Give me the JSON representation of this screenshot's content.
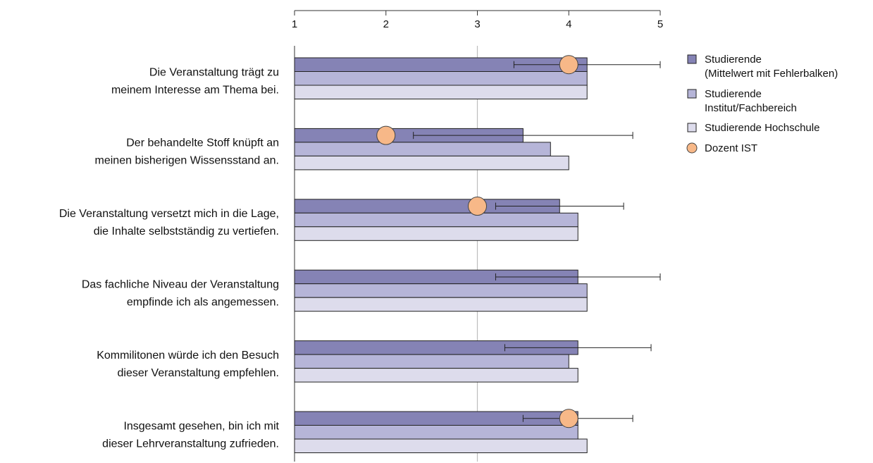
{
  "chart_data": {
    "type": "bar",
    "orientation": "horizontal",
    "xlim": [
      1,
      5
    ],
    "xticks": [
      "1",
      "2",
      "3",
      "4",
      "5"
    ],
    "reference_line": 3,
    "categories": [
      [
        "Die Veranstaltung trägt zu",
        "meinem Interesse am Thema bei."
      ],
      [
        "Der behandelte Stoff knüpft an",
        "meinen bisherigen Wissensstand an."
      ],
      [
        "Die Veranstaltung versetzt mich in die Lage,",
        "die Inhalte selbstständig zu vertiefen."
      ],
      [
        "Das fachliche Niveau der Veranstaltung",
        "empfinde ich als angemessen."
      ],
      [
        "Kommilitonen würde ich den Besuch",
        "dieser Veranstaltung empfehlen."
      ],
      [
        "Insgesamt gesehen, bin ich mit",
        "dieser Lehrveranstaltung zufrieden."
      ]
    ],
    "series": [
      {
        "name": "Studierende",
        "name_line2": "(Mittelwert mit Fehlerbalken)",
        "color": "#8583b5",
        "values": [
          4.2,
          3.5,
          3.9,
          4.1,
          4.1,
          4.1
        ],
        "error_low": [
          3.4,
          2.3,
          3.2,
          3.2,
          3.3,
          3.5
        ],
        "error_high": [
          5.0,
          4.7,
          4.6,
          5.0,
          4.9,
          4.7
        ]
      },
      {
        "name": "Studierende",
        "name_line2": "Institut/Fachbereich",
        "color": "#b6b5d8",
        "values": [
          4.2,
          3.8,
          4.1,
          4.2,
          4.0,
          4.1
        ]
      },
      {
        "name": "Studierende Hochschule",
        "color": "#dddcec",
        "values": [
          4.2,
          4.0,
          4.1,
          4.2,
          4.1,
          4.2
        ]
      }
    ],
    "markers": {
      "name": "Dozent IST",
      "color": "#f7b888",
      "values": [
        4.0,
        2.0,
        3.0,
        null,
        null,
        4.0
      ]
    }
  }
}
